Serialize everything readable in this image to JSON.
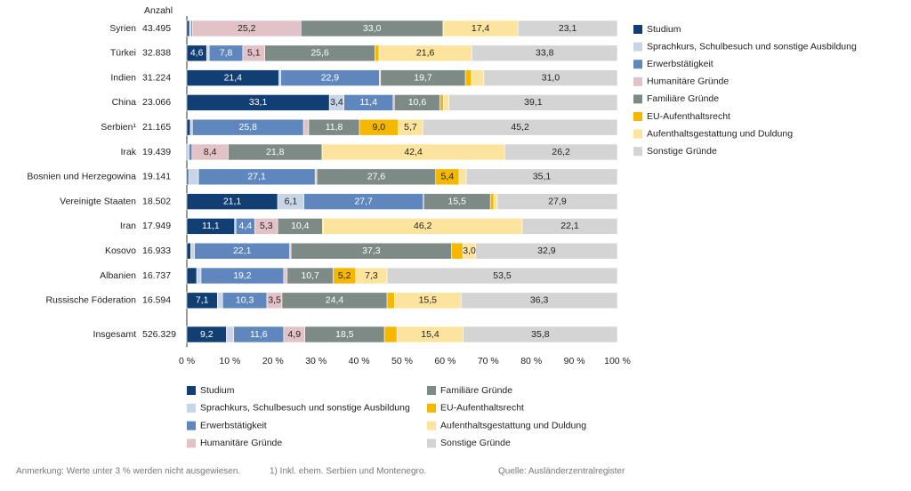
{
  "chart_data": {
    "type": "stacked-bar-horizontal",
    "count_header": "Anzahl",
    "categories": [
      "Syrien",
      "Türkei",
      "Indien",
      "China",
      "Serbien¹",
      "Irak",
      "Bosnien und Herzegowina",
      "Vereinigte Staaten",
      "Iran",
      "Kosovo",
      "Albanien",
      "Russische Föderation",
      "Insgesamt"
    ],
    "category_counts": [
      "43.495",
      "32.838",
      "31.224",
      "23.066",
      "21.165",
      "19.439",
      "19.141",
      "18.502",
      "17.949",
      "16.933",
      "16.737",
      "16.594",
      "526.329"
    ],
    "xlim": [
      0,
      100
    ],
    "xticks": [
      {
        "value": 0,
        "label": "0 %"
      },
      {
        "value": 10,
        "label": "10 %"
      },
      {
        "value": 20,
        "label": "20 %"
      },
      {
        "value": 30,
        "label": "30 %"
      },
      {
        "value": 40,
        "label": "40 %"
      },
      {
        "value": 50,
        "label": "50 %"
      },
      {
        "value": 60,
        "label": "60 %"
      },
      {
        "value": 70,
        "label": "70 %"
      },
      {
        "value": 80,
        "label": "80 %"
      },
      {
        "value": 90,
        "label": "90 %"
      },
      {
        "value": 100,
        "label": "100 %"
      }
    ],
    "series": [
      {
        "name": "Studium",
        "color": "#123f73",
        "values": [
          0.6,
          4.6,
          21.4,
          33.1,
          0.8,
          0.2,
          0.4,
          21.1,
          11.1,
          0.9,
          2.3,
          7.1,
          9.2
        ],
        "value_labels": [
          null,
          "4,6",
          "21,4",
          "33,1",
          null,
          null,
          null,
          "21,1",
          "11,1",
          null,
          null,
          "7,1",
          "9,2"
        ]
      },
      {
        "name": "Sprachkurs, Schulbesuch und sonstige Ausbildung",
        "color": "#c8d5e7",
        "values": [
          0.4,
          0.6,
          0.4,
          3.4,
          0.5,
          0.3,
          2.3,
          6.1,
          0.3,
          0.9,
          1.0,
          1.2,
          1.7
        ],
        "value_labels": [
          null,
          null,
          null,
          "3,4",
          null,
          null,
          null,
          "6,1",
          null,
          null,
          null,
          null,
          null
        ]
      },
      {
        "name": "Erwerbstätigkeit",
        "color": "#5f87bd",
        "values": [
          0.3,
          7.8,
          22.9,
          11.4,
          25.8,
          0.7,
          27.1,
          27.7,
          4.4,
          22.1,
          19.2,
          10.3,
          11.6
        ],
        "value_labels": [
          null,
          "7,8",
          "22,9",
          "11,4",
          "25,8",
          null,
          "27,1",
          "27,7",
          "4,4",
          "22,1",
          "19,2",
          "10,3",
          "11,6"
        ]
      },
      {
        "name": "Humanitäre Gründe",
        "color": "#e2c2c7",
        "values": [
          25.2,
          5.1,
          0.3,
          0.3,
          1.2,
          8.4,
          0.4,
          0.1,
          5.3,
          0.3,
          0.8,
          3.5,
          4.9
        ],
        "value_labels": [
          "25,2",
          "5,1",
          null,
          null,
          null,
          "8,4",
          null,
          null,
          "5,3",
          null,
          null,
          "3,5",
          "4,9"
        ]
      },
      {
        "name": "Familiäre Gründe",
        "color": "#7d8a86",
        "values": [
          33.0,
          25.6,
          19.7,
          10.6,
          11.8,
          21.8,
          27.6,
          15.5,
          10.4,
          37.3,
          10.7,
          24.4,
          18.5
        ],
        "value_labels": [
          "33,0",
          "25,6",
          "19,7",
          "10,6",
          "11,8",
          "21,8",
          "27,6",
          "15,5",
          "10,4",
          "37,3",
          "10,7",
          "24,4",
          "18,5"
        ]
      },
      {
        "name": "EU-Aufenthaltsrecht",
        "color": "#f5b700",
        "values": [
          0.0,
          0.9,
          1.4,
          0.8,
          9.0,
          0.0,
          5.4,
          0.8,
          0.2,
          2.6,
          5.2,
          1.7,
          2.9
        ],
        "value_labels": [
          null,
          null,
          null,
          null,
          "9,0",
          null,
          "5,4",
          null,
          null,
          null,
          "5,2",
          null,
          null
        ]
      },
      {
        "name": "Aufenthaltsgestattung und Duldung",
        "color": "#fde49e",
        "values": [
          17.4,
          21.6,
          2.9,
          1.3,
          5.7,
          42.4,
          1.7,
          0.8,
          46.2,
          3.0,
          7.3,
          15.5,
          15.4
        ],
        "value_labels": [
          "17,4",
          "21,6",
          null,
          null,
          "5,7",
          "42,4",
          null,
          null,
          "46,2",
          "3,0",
          "7,3",
          "15,5",
          "15,4"
        ]
      },
      {
        "name": "Sonstige Gründe",
        "color": "#d4d4d4",
        "values": [
          23.1,
          33.8,
          31.0,
          39.1,
          45.2,
          26.2,
          35.1,
          27.9,
          22.1,
          32.9,
          53.5,
          36.3,
          35.8
        ],
        "value_labels": [
          "23,1",
          "33,8",
          "31,0",
          "39,1",
          "45,2",
          "26,2",
          "35,1",
          "27,9",
          "22,1",
          "32,9",
          "53,5",
          "36,3",
          "35,8"
        ]
      }
    ],
    "footnotes": [
      "Anmerkung: Werte unter 3 % werden nicht ausgewiesen.",
      "1) Inkl. ehem. Serbien und Montenegro.",
      "Quelle: Ausländerzentralregister"
    ]
  }
}
